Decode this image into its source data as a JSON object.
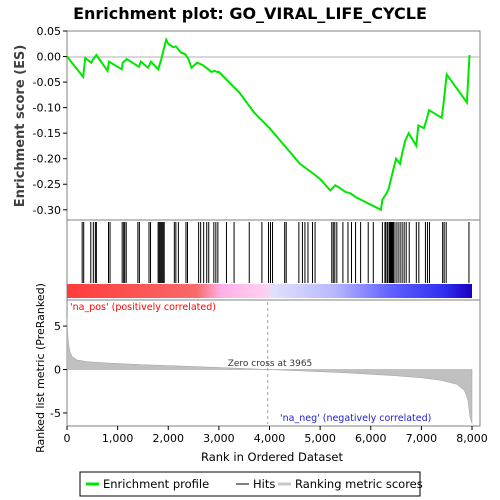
{
  "chart_data": {
    "type": "line",
    "title": "Enrichment plot: GO_VIRAL_LIFE_CYCLE",
    "xlabel": "Rank in Ordered Dataset",
    "es_panel": {
      "ylabel": "Enrichment score (ES)",
      "ylim": [
        -0.32,
        0.05
      ],
      "yticks": [
        0.05,
        0.0,
        -0.05,
        -0.1,
        -0.15,
        -0.2,
        -0.25,
        -0.3
      ],
      "ytick_labels": [
        "0.05",
        "0.00",
        "-0.05",
        "-0.10",
        "-0.15",
        "-0.20",
        "-0.25",
        "-0.30"
      ],
      "series": [
        {
          "name": "Enrichment profile",
          "color": "#00ff00",
          "x": [
            0,
            320,
            360,
            480,
            520,
            580,
            800,
            830,
            1080,
            1100,
            1180,
            1420,
            1460,
            1600,
            1660,
            1800,
            1850,
            1900,
            1960,
            2000,
            2100,
            2150,
            2250,
            2330,
            2400,
            2460,
            2570,
            2640,
            2700,
            2790,
            2850,
            2920,
            2960,
            3000,
            3100,
            3400,
            3700,
            4000,
            4300,
            4600,
            4850,
            5000,
            5200,
            5300,
            5400,
            5500,
            5600,
            5700,
            5900,
            6000,
            6100,
            6200,
            6230,
            6300,
            6350,
            6400,
            6450,
            6500,
            6580,
            6620,
            6680,
            6750,
            6900,
            6940,
            7050,
            7100,
            7150,
            7400,
            7430,
            7500,
            7900,
            7950
          ],
          "y": [
            0.0,
            -0.04,
            -0.003,
            -0.012,
            -0.005,
            0.003,
            -0.028,
            -0.01,
            -0.025,
            -0.012,
            -0.005,
            -0.02,
            -0.01,
            -0.022,
            -0.01,
            -0.025,
            -0.01,
            0.01,
            0.033,
            0.025,
            0.018,
            0.02,
            0.008,
            0.005,
            -0.005,
            -0.022,
            -0.012,
            -0.015,
            -0.018,
            -0.025,
            -0.03,
            -0.028,
            -0.03,
            -0.03,
            -0.04,
            -0.07,
            -0.11,
            -0.14,
            -0.175,
            -0.21,
            -0.228,
            -0.24,
            -0.262,
            -0.252,
            -0.258,
            -0.265,
            -0.268,
            -0.275,
            -0.285,
            -0.29,
            -0.295,
            -0.3,
            -0.28,
            -0.27,
            -0.26,
            -0.24,
            -0.22,
            -0.2,
            -0.21,
            -0.19,
            -0.165,
            -0.15,
            -0.175,
            -0.135,
            -0.14,
            -0.125,
            -0.105,
            -0.12,
            -0.1,
            -0.035,
            -0.09,
            0.003
          ]
        }
      ]
    },
    "hits_panel": {
      "legend_name": "Hits",
      "hit_ranks": [
        300,
        330,
        470,
        520,
        560,
        580,
        820,
        850,
        1090,
        1120,
        1140,
        1170,
        1400,
        1430,
        1620,
        1650,
        1800,
        1820,
        1840,
        1860,
        1880,
        1900,
        1920,
        2120,
        2150,
        2200,
        2350,
        2380,
        2600,
        2640,
        2700,
        2760,
        2800,
        2900,
        2940,
        2980,
        3150,
        3300,
        3600,
        3850,
        3980,
        4020,
        4060,
        4300,
        4330,
        4580,
        4650,
        4700,
        4760,
        4850,
        4900,
        5230,
        5260,
        5290,
        5330,
        5450,
        5550,
        5620,
        5700,
        5800,
        5950,
        6050,
        6230,
        6280,
        6300,
        6330,
        6360,
        6380,
        6400,
        6420,
        6440,
        6460,
        6500,
        6540,
        6580,
        6620,
        6660,
        6700,
        6760,
        6900,
        6950,
        7080,
        7120,
        7160,
        7420,
        7450,
        7490,
        7940
      ]
    },
    "ranking_panel": {
      "legend_name": "Ranking metric scores",
      "ylabel": "Ranked list metric (PreRanked)",
      "ylim": [
        -6.5,
        8
      ],
      "yticks": [
        5,
        0,
        -5
      ],
      "ytick_labels": [
        "5",
        "0",
        "-5"
      ],
      "x": [
        0,
        10,
        30,
        60,
        100,
        200,
        400,
        800,
        1500,
        2500,
        3500,
        3965,
        4500,
        5500,
        6500,
        7000,
        7400,
        7700,
        7850,
        7920,
        7960,
        8000
      ],
      "values": [
        6.0,
        4.5,
        3.0,
        2.0,
        1.5,
        1.1,
        0.9,
        0.75,
        0.55,
        0.35,
        0.12,
        0.0,
        -0.12,
        -0.38,
        -0.72,
        -0.95,
        -1.25,
        -1.7,
        -2.4,
        -3.5,
        -5.5,
        -6.2
      ],
      "zero_cross_label": "Zero cross at 3965",
      "zero_cross_rank": 3965,
      "pos_label": "'na_pos' (positively correlated)",
      "neg_label": "'na_neg' (negatively correlated)",
      "pos_color": "#ff0000",
      "neg_color": "#0000ff"
    },
    "xlim": [
      0,
      8000
    ],
    "xticks": [
      0,
      1000,
      2000,
      3000,
      4000,
      5000,
      6000,
      7000,
      8000
    ],
    "xtick_labels": [
      "0",
      "1,000",
      "2,000",
      "3,000",
      "4,000",
      "5,000",
      "6,000",
      "7,000",
      "8,000"
    ],
    "legend": {
      "position": "bottom",
      "entries": [
        {
          "label": "Enrichment profile",
          "color": "#00ff00"
        },
        {
          "label": "Hits",
          "color": "#808080"
        },
        {
          "label": "Ranking metric scores",
          "color": "#c8c8c8"
        }
      ]
    }
  }
}
